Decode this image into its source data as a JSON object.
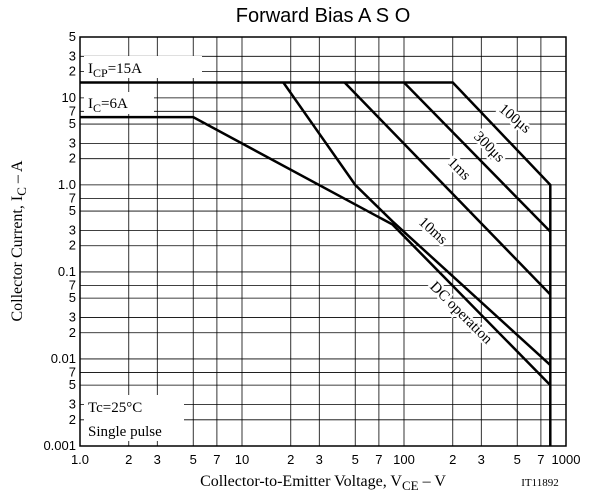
{
  "chart_data": {
    "type": "line",
    "title": "Forward Bias A S O",
    "x_label": {
      "text": "Collector-to-Emitter Voltage, V",
      "sub": "CE",
      "rest": " – V"
    },
    "y_label": {
      "text": "Collector Current, I",
      "sub": "C",
      "rest": " – A"
    },
    "code": "IT11892",
    "annotations": [
      {
        "main": "I",
        "sub": "CP",
        "rest": "=15A"
      },
      {
        "main": "I",
        "sub": "C",
        "rest": "=6A"
      },
      {
        "main": "Tc=25°C"
      },
      {
        "main": "Single pulse"
      }
    ],
    "log_x": true,
    "log_y": true,
    "grid": true,
    "xlim": [
      1,
      1000
    ],
    "ylim": [
      0.001,
      50
    ],
    "xticks": [
      {
        "value": 1,
        "label": "1.0"
      },
      2,
      3,
      5,
      7,
      10,
      {
        "value": 20,
        "label": "2"
      },
      {
        "value": 30,
        "label": "3"
      },
      {
        "value": 50,
        "label": "5"
      },
      {
        "value": 70,
        "label": "7"
      },
      100,
      {
        "value": 200,
        "label": "2"
      },
      {
        "value": 300,
        "label": "3"
      },
      {
        "value": 500,
        "label": "5"
      },
      {
        "value": 700,
        "label": "7"
      },
      1000
    ],
    "yticks": [
      0.001,
      {
        "value": 0.002,
        "label": "2"
      },
      {
        "value": 0.003,
        "label": "3"
      },
      {
        "value": 0.005,
        "label": "5"
      },
      {
        "value": 0.007,
        "label": "7"
      },
      0.01,
      {
        "value": 0.02,
        "label": "2"
      },
      {
        "value": 0.03,
        "label": "3"
      },
      {
        "value": 0.05,
        "label": "5"
      },
      {
        "value": 0.07,
        "label": "7"
      },
      0.1,
      {
        "value": 0.2,
        "label": "2"
      },
      {
        "value": 0.3,
        "label": "3"
      },
      {
        "value": 0.5,
        "label": "5"
      },
      {
        "value": 0.7,
        "label": "7"
      },
      {
        "value": 1,
        "label": "1.0"
      },
      2,
      3,
      5,
      7,
      10,
      {
        "value": 20,
        "label": "2"
      },
      {
        "value": 30,
        "label": "3"
      },
      {
        "value": 50,
        "label": "5"
      }
    ],
    "series": [
      {
        "name": "100μs",
        "color": "#000000",
        "x": [
          1,
          200,
          800,
          800
        ],
        "values": [
          15,
          15,
          1,
          0.001
        ]
      },
      {
        "name": "300μs",
        "color": "#000000",
        "x": [
          100,
          800
        ],
        "values": [
          15,
          0.29
        ]
      },
      {
        "name": "1ms",
        "color": "#000000",
        "x": [
          43,
          800
        ],
        "values": [
          15,
          0.055
        ]
      },
      {
        "name": "10ms",
        "color": "#000000",
        "x": [
          18,
          50,
          85,
          800
        ],
        "values": [
          15,
          1,
          0.38,
          0.0085
        ]
      },
      {
        "name": "DC operation",
        "color": "#000000",
        "x": [
          1,
          5,
          85,
          800
        ],
        "values": [
          6,
          6,
          0.35,
          0.005
        ]
      }
    ]
  }
}
